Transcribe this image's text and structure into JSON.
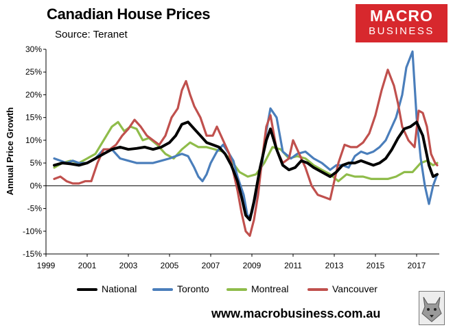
{
  "header": {
    "title": "Canadian House Prices",
    "subtitle": "Source: Teranet"
  },
  "logo": {
    "line1": "MACRO",
    "line2": "BUSINESS",
    "color": "#d7282d"
  },
  "footer": {
    "website": "www.macrobusiness.com.au",
    "badge_icon": "wolf-icon"
  },
  "chart_data": {
    "type": "line",
    "title": "Canadian House Prices",
    "subtitle": "Source: Teranet",
    "xlabel": "",
    "ylabel": "Annual Price Growth",
    "xlim": [
      1999,
      2018.1
    ],
    "ylim": [
      -15,
      30
    ],
    "x_ticks": [
      1999,
      2001,
      2003,
      2005,
      2007,
      2009,
      2011,
      2013,
      2015,
      2017
    ],
    "x_tick_labels": [
      "1999",
      "2001",
      "2003",
      "2005",
      "2007",
      "2009",
      "2011",
      "2013",
      "2015",
      "2017"
    ],
    "y_ticks": [
      -15,
      -10,
      -5,
      0,
      5,
      10,
      15,
      20,
      25,
      30
    ],
    "y_tick_labels": [
      "-15%",
      "-10%",
      "-5%",
      "0%",
      "5%",
      "10%",
      "15%",
      "20%",
      "25%",
      "30%"
    ],
    "grid": false,
    "legend_position": "bottom",
    "series": [
      {
        "name": "National",
        "color": "#000000",
        "x": [
          1999.4,
          1999.8,
          2000.2,
          2000.6,
          2001.0,
          2001.4,
          2001.8,
          2002.2,
          2002.6,
          2003.0,
          2003.4,
          2003.8,
          2004.2,
          2004.6,
          2005.0,
          2005.3,
          2005.6,
          2005.9,
          2006.2,
          2006.5,
          2006.8,
          2007.1,
          2007.4,
          2007.7,
          2008.0,
          2008.3,
          2008.5,
          2008.7,
          2008.9,
          2009.1,
          2009.4,
          2009.7,
          2009.9,
          2010.2,
          2010.5,
          2010.8,
          2011.1,
          2011.4,
          2011.7,
          2012.0,
          2012.4,
          2012.8,
          2013.1,
          2013.4,
          2013.7,
          2014.0,
          2014.3,
          2014.6,
          2014.9,
          2015.2,
          2015.5,
          2015.8,
          2016.1,
          2016.4,
          2016.7,
          2017.0,
          2017.3,
          2017.6,
          2017.8,
          2018.0
        ],
        "values": [
          4.5,
          5.0,
          4.8,
          4.5,
          5.0,
          6.0,
          7.0,
          8.0,
          8.5,
          8.0,
          8.2,
          8.5,
          8.0,
          8.5,
          9.5,
          11.0,
          13.5,
          14.0,
          12.5,
          11.0,
          9.5,
          9.0,
          8.5,
          7.0,
          4.5,
          1.0,
          -2.5,
          -6.5,
          -7.5,
          -3.5,
          4.0,
          10.0,
          12.5,
          8.0,
          4.5,
          3.5,
          4.0,
          5.5,
          5.0,
          4.0,
          3.0,
          2.0,
          3.0,
          4.5,
          5.0,
          5.0,
          5.5,
          5.0,
          4.5,
          5.0,
          6.0,
          8.0,
          10.5,
          12.5,
          13.0,
          14.0,
          11.0,
          4.5,
          2.0,
          2.5
        ]
      },
      {
        "name": "Toronto",
        "color": "#4a7ebb",
        "x": [
          1999.4,
          1999.7,
          2000.0,
          2000.3,
          2000.6,
          2001.0,
          2001.4,
          2001.8,
          2002.2,
          2002.6,
          2003.0,
          2003.4,
          2003.8,
          2004.2,
          2004.6,
          2005.0,
          2005.3,
          2005.6,
          2005.9,
          2006.2,
          2006.4,
          2006.6,
          2006.8,
          2007.0,
          2007.3,
          2007.6,
          2007.9,
          2008.1,
          2008.3,
          2008.6,
          2008.8,
          2009.0,
          2009.2,
          2009.5,
          2009.7,
          2009.9,
          2010.2,
          2010.5,
          2010.9,
          2011.2,
          2011.6,
          2012.0,
          2012.4,
          2012.8,
          2013.1,
          2013.4,
          2013.7,
          2014.0,
          2014.3,
          2014.6,
          2014.9,
          2015.2,
          2015.5,
          2015.8,
          2016.0,
          2016.3,
          2016.5,
          2016.8,
          2017.0,
          2017.2,
          2017.4,
          2017.6,
          2017.8,
          2018.0
        ],
        "values": [
          6.0,
          5.5,
          5.0,
          5.5,
          5.0,
          5.0,
          6.0,
          8.0,
          8.0,
          6.0,
          5.5,
          5.0,
          5.0,
          5.0,
          5.5,
          6.0,
          6.5,
          7.0,
          6.5,
          4.0,
          2.0,
          1.0,
          2.5,
          5.0,
          7.5,
          9.0,
          7.0,
          5.5,
          2.0,
          -2.0,
          -7.0,
          -6.0,
          -2.0,
          5.0,
          12.0,
          17.0,
          15.0,
          7.5,
          6.0,
          7.0,
          7.5,
          6.0,
          5.0,
          3.5,
          4.5,
          4.5,
          4.0,
          6.5,
          7.5,
          7.0,
          7.5,
          8.5,
          10.0,
          13.0,
          15.0,
          20.0,
          26.0,
          29.5,
          15.0,
          6.0,
          0.0,
          -4.0,
          0.0,
          2.5
        ]
      },
      {
        "name": "Montreal",
        "color": "#8fbc4a",
        "x": [
          1999.4,
          1999.8,
          2000.2,
          2000.6,
          2001.0,
          2001.4,
          2001.8,
          2002.2,
          2002.5,
          2002.8,
          2003.1,
          2003.4,
          2003.7,
          2004.0,
          2004.4,
          2004.8,
          2005.2,
          2005.6,
          2006.0,
          2006.4,
          2006.8,
          2007.2,
          2007.6,
          2008.0,
          2008.4,
          2008.8,
          2009.2,
          2009.6,
          2010.0,
          2010.4,
          2010.8,
          2011.2,
          2011.6,
          2012.0,
          2012.4,
          2012.8,
          2013.2,
          2013.6,
          2014.0,
          2014.4,
          2014.8,
          2015.2,
          2015.6,
          2016.0,
          2016.4,
          2016.8,
          2017.2,
          2017.5,
          2017.8,
          2018.0
        ],
        "values": [
          4.0,
          5.0,
          5.5,
          5.0,
          6.0,
          7.0,
          10.0,
          13.0,
          14.0,
          12.0,
          13.0,
          12.5,
          10.0,
          10.5,
          9.0,
          7.0,
          6.0,
          8.0,
          9.5,
          8.5,
          8.5,
          8.0,
          7.5,
          5.5,
          3.0,
          2.0,
          2.5,
          5.0,
          8.5,
          8.0,
          6.0,
          6.5,
          6.0,
          4.5,
          3.5,
          2.5,
          1.0,
          2.5,
          2.0,
          2.0,
          1.5,
          1.5,
          1.5,
          2.0,
          3.0,
          3.0,
          5.0,
          5.5,
          4.5,
          5.0
        ]
      },
      {
        "name": "Vancouver",
        "color": "#c0504d",
        "x": [
          1999.4,
          1999.7,
          2000.0,
          2000.3,
          2000.6,
          2000.9,
          2001.2,
          2001.5,
          2001.8,
          2002.1,
          2002.4,
          2002.7,
          2003.0,
          2003.3,
          2003.6,
          2003.9,
          2004.2,
          2004.5,
          2004.8,
          2005.1,
          2005.4,
          2005.6,
          2005.8,
          2006.0,
          2006.2,
          2006.5,
          2006.8,
          2007.1,
          2007.3,
          2007.6,
          2007.9,
          2008.1,
          2008.3,
          2008.5,
          2008.7,
          2008.9,
          2009.1,
          2009.3,
          2009.5,
          2009.7,
          2009.9,
          2010.2,
          2010.5,
          2010.8,
          2011.0,
          2011.3,
          2011.6,
          2011.9,
          2012.2,
          2012.5,
          2012.8,
          2013.0,
          2013.2,
          2013.5,
          2013.8,
          2014.1,
          2014.4,
          2014.7,
          2015.0,
          2015.3,
          2015.6,
          2015.9,
          2016.1,
          2016.3,
          2016.6,
          2016.9,
          2017.1,
          2017.3,
          2017.5,
          2017.7,
          2017.9,
          2018.0
        ],
        "values": [
          1.5,
          2.0,
          1.0,
          0.5,
          0.5,
          1.0,
          1.0,
          5.0,
          8.0,
          8.0,
          9.0,
          11.0,
          12.5,
          14.5,
          13.0,
          11.0,
          10.0,
          9.0,
          11.0,
          15.0,
          17.0,
          21.0,
          23.0,
          20.0,
          17.5,
          15.0,
          11.0,
          11.0,
          13.0,
          10.0,
          7.0,
          3.0,
          -1.0,
          -6.0,
          -10.0,
          -11.0,
          -7.5,
          -2.0,
          6.0,
          13.0,
          15.5,
          8.0,
          5.0,
          6.0,
          10.0,
          7.0,
          4.0,
          0.0,
          -2.0,
          -2.5,
          -3.0,
          1.0,
          5.0,
          9.0,
          8.5,
          8.5,
          9.5,
          11.5,
          15.5,
          21.0,
          25.5,
          22.0,
          18.0,
          13.0,
          10.0,
          8.5,
          16.5,
          16.0,
          13.0,
          7.0,
          5.0,
          4.5
        ]
      }
    ]
  }
}
